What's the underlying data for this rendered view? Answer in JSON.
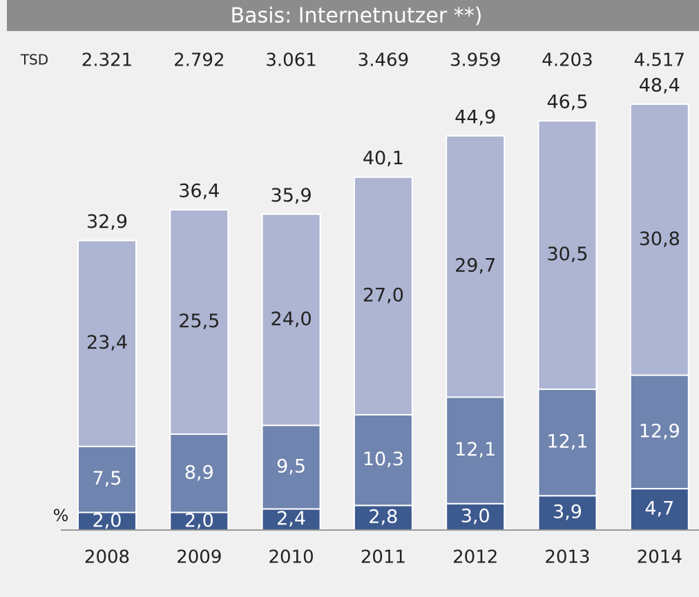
{
  "chart_data": {
    "type": "stacked_bar",
    "title": "Basis: Internetnutzer **)",
    "unit_label": "%",
    "categories": [
      "2008",
      "2009",
      "2010",
      "2011",
      "2012",
      "2013",
      "2014"
    ],
    "tsd": {
      "label": "TSD",
      "values": [
        2321,
        2792,
        3061,
        3469,
        3959,
        4203,
        4517
      ],
      "value_labels": [
        "2.321",
        "2.792",
        "3.061",
        "3.469",
        "3.959",
        "4.203",
        "4.517"
      ]
    },
    "series": [
      {
        "color": "#3d5a8f",
        "label_color": "#ffffff",
        "values": [
          2.0,
          2.0,
          2.4,
          2.8,
          3.0,
          3.9,
          4.7
        ],
        "value_labels": [
          "2,0",
          "2,0",
          "2,4",
          "2,8",
          "3,0",
          "3,9",
          "4,7"
        ]
      },
      {
        "color": "#6f84ae",
        "label_color": "#ffffff",
        "values": [
          7.5,
          8.9,
          9.5,
          10.3,
          12.1,
          12.1,
          12.9
        ],
        "value_labels": [
          "7,5",
          "8,9",
          "9,5",
          "10,3",
          "12,1",
          "12,1",
          "12,9"
        ]
      },
      {
        "color": "#adb5d2",
        "label_color": "#222222",
        "values": [
          23.4,
          25.5,
          24.0,
          27.0,
          29.7,
          30.5,
          30.8
        ],
        "value_labels": [
          "23,4",
          "25,5",
          "24,0",
          "27,0",
          "29,7",
          "30,5",
          "30,8"
        ]
      }
    ],
    "totals": {
      "values": [
        32.9,
        36.4,
        35.9,
        40.1,
        44.9,
        46.5,
        48.4
      ],
      "value_labels": [
        "32,9",
        "36,4",
        "35,9",
        "40,1",
        "44,9",
        "46,5",
        "48,4"
      ]
    },
    "ylim": [
      0,
      50
    ]
  }
}
